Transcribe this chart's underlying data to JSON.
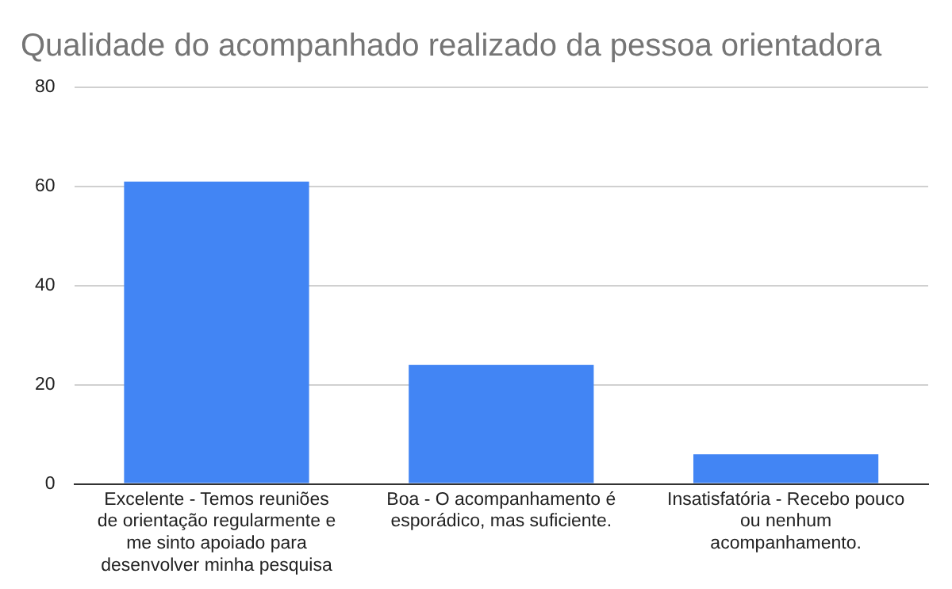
{
  "chart_data": {
    "type": "bar",
    "title": "Qualidade do acompanhado realizado da pessoa orientadora",
    "categories": [
      "Excelente - Temos reuniões de orientação regularmente e me sinto apoiado para desenvolver minha pesquisa",
      "Boa - O acompanhamento é esporádico, mas suficiente.",
      "Insatisfatória - Recebo pouco ou nenhum acompanhamento."
    ],
    "values": [
      61,
      24,
      6
    ],
    "color": "#4285f4",
    "ylim": [
      0,
      80
    ],
    "yticks": [
      0,
      20,
      40,
      60,
      80
    ],
    "grid": "y",
    "legend": false
  }
}
